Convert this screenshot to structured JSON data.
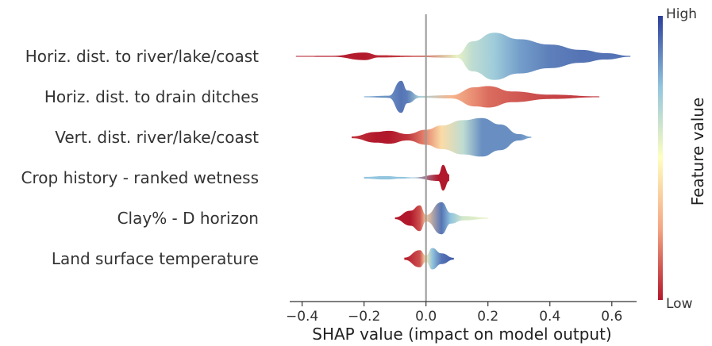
{
  "chart_data": {
    "type": "violin",
    "xlabel": "SHAP value (impact on model output)",
    "xlim": [
      -0.44,
      0.68
    ],
    "xticks": [
      {
        "value": -0.4,
        "label": "−0.4"
      },
      {
        "value": -0.2,
        "label": "−0.2"
      },
      {
        "value": 0.0,
        "label": "0.0"
      },
      {
        "value": 0.2,
        "label": "0.2"
      },
      {
        "value": 0.4,
        "label": "0.4"
      },
      {
        "value": 0.6,
        "label": "0.6"
      }
    ],
    "colorbar": {
      "label": "Feature value",
      "high": "High",
      "low": "Low",
      "colors": [
        "#b2182b",
        "#f4a582",
        "#ffffbf",
        "#92c5de",
        "#2c3e99"
      ]
    },
    "features": [
      {
        "name": "Horiz. dist. to river/lake/coast",
        "min": -0.42,
        "max": 0.66,
        "density": [
          [
            -0.42,
            0.3,
            0.0
          ],
          [
            -0.3,
            0.5,
            0.02
          ],
          [
            -0.2,
            3.5,
            0.0
          ],
          [
            -0.15,
            1,
            0.03
          ],
          [
            -0.05,
            0.6,
            0.08
          ],
          [
            0.1,
            1.5,
            0.55
          ],
          [
            0.15,
            14,
            0.65
          ],
          [
            0.22,
            22,
            0.72
          ],
          [
            0.3,
            16,
            0.82
          ],
          [
            0.4,
            11,
            0.88
          ],
          [
            0.5,
            6,
            0.9
          ],
          [
            0.58,
            3,
            0.9
          ],
          [
            0.66,
            0.5,
            0.9
          ]
        ]
      },
      {
        "name": "Horiz. dist. to drain ditches",
        "min": -0.2,
        "max": 0.56,
        "density": [
          [
            -0.2,
            0.4,
            0.8
          ],
          [
            -0.12,
            1,
            0.85
          ],
          [
            -0.08,
            15,
            0.9
          ],
          [
            -0.06,
            6,
            0.88
          ],
          [
            -0.02,
            0.8,
            0.7
          ],
          [
            0.08,
            1.5,
            0.3
          ],
          [
            0.16,
            9,
            0.2
          ],
          [
            0.2,
            10,
            0.15
          ],
          [
            0.28,
            5,
            0.12
          ],
          [
            0.4,
            2,
            0.08
          ],
          [
            0.56,
            0.4,
            0.05
          ]
        ]
      },
      {
        "name": "Vert. dist. river/lake/coast",
        "min": -0.24,
        "max": 0.34,
        "density": [
          [
            -0.24,
            0.8,
            0.05
          ],
          [
            -0.16,
            5,
            0.0
          ],
          [
            -0.12,
            6,
            0.0
          ],
          [
            -0.06,
            3,
            0.05
          ],
          [
            0.0,
            7,
            0.2
          ],
          [
            0.05,
            11,
            0.4
          ],
          [
            0.12,
            16,
            0.65
          ],
          [
            0.18,
            18,
            0.85
          ],
          [
            0.24,
            12,
            0.85
          ],
          [
            0.3,
            3,
            0.85
          ],
          [
            0.34,
            0.6,
            0.8
          ]
        ]
      },
      {
        "name": "Crop history - ranked wetness",
        "min": -0.2,
        "max": 0.08,
        "density": [
          [
            -0.2,
            0.8,
            0.75
          ],
          [
            -0.13,
            1.6,
            0.75
          ],
          [
            -0.08,
            0.8,
            0.75
          ],
          [
            -0.04,
            0.2,
            0.75
          ],
          [
            0.04,
            3,
            0.0
          ],
          [
            0.055,
            12,
            0.0
          ],
          [
            0.075,
            3,
            0.0
          ]
        ]
      },
      {
        "name": "Clay% - D horizon",
        "min": -0.1,
        "max": 0.2,
        "density": [
          [
            -0.1,
            0.8,
            0.0
          ],
          [
            -0.05,
            7,
            0.0
          ],
          [
            -0.02,
            12,
            0.1
          ],
          [
            0.0,
            3,
            0.35
          ],
          [
            0.05,
            15,
            0.9
          ],
          [
            0.08,
            5,
            0.75
          ],
          [
            0.12,
            2,
            0.6
          ],
          [
            0.2,
            0.5,
            0.55
          ]
        ]
      },
      {
        "name": "Land surface temperature",
        "min": -0.07,
        "max": 0.09,
        "density": [
          [
            -0.07,
            1,
            0.0
          ],
          [
            -0.02,
            8,
            0.1
          ],
          [
            0.0,
            3,
            0.45
          ],
          [
            0.02,
            10,
            0.75
          ],
          [
            0.05,
            5,
            0.9
          ],
          [
            0.09,
            0.8,
            0.95
          ]
        ]
      }
    ]
  }
}
